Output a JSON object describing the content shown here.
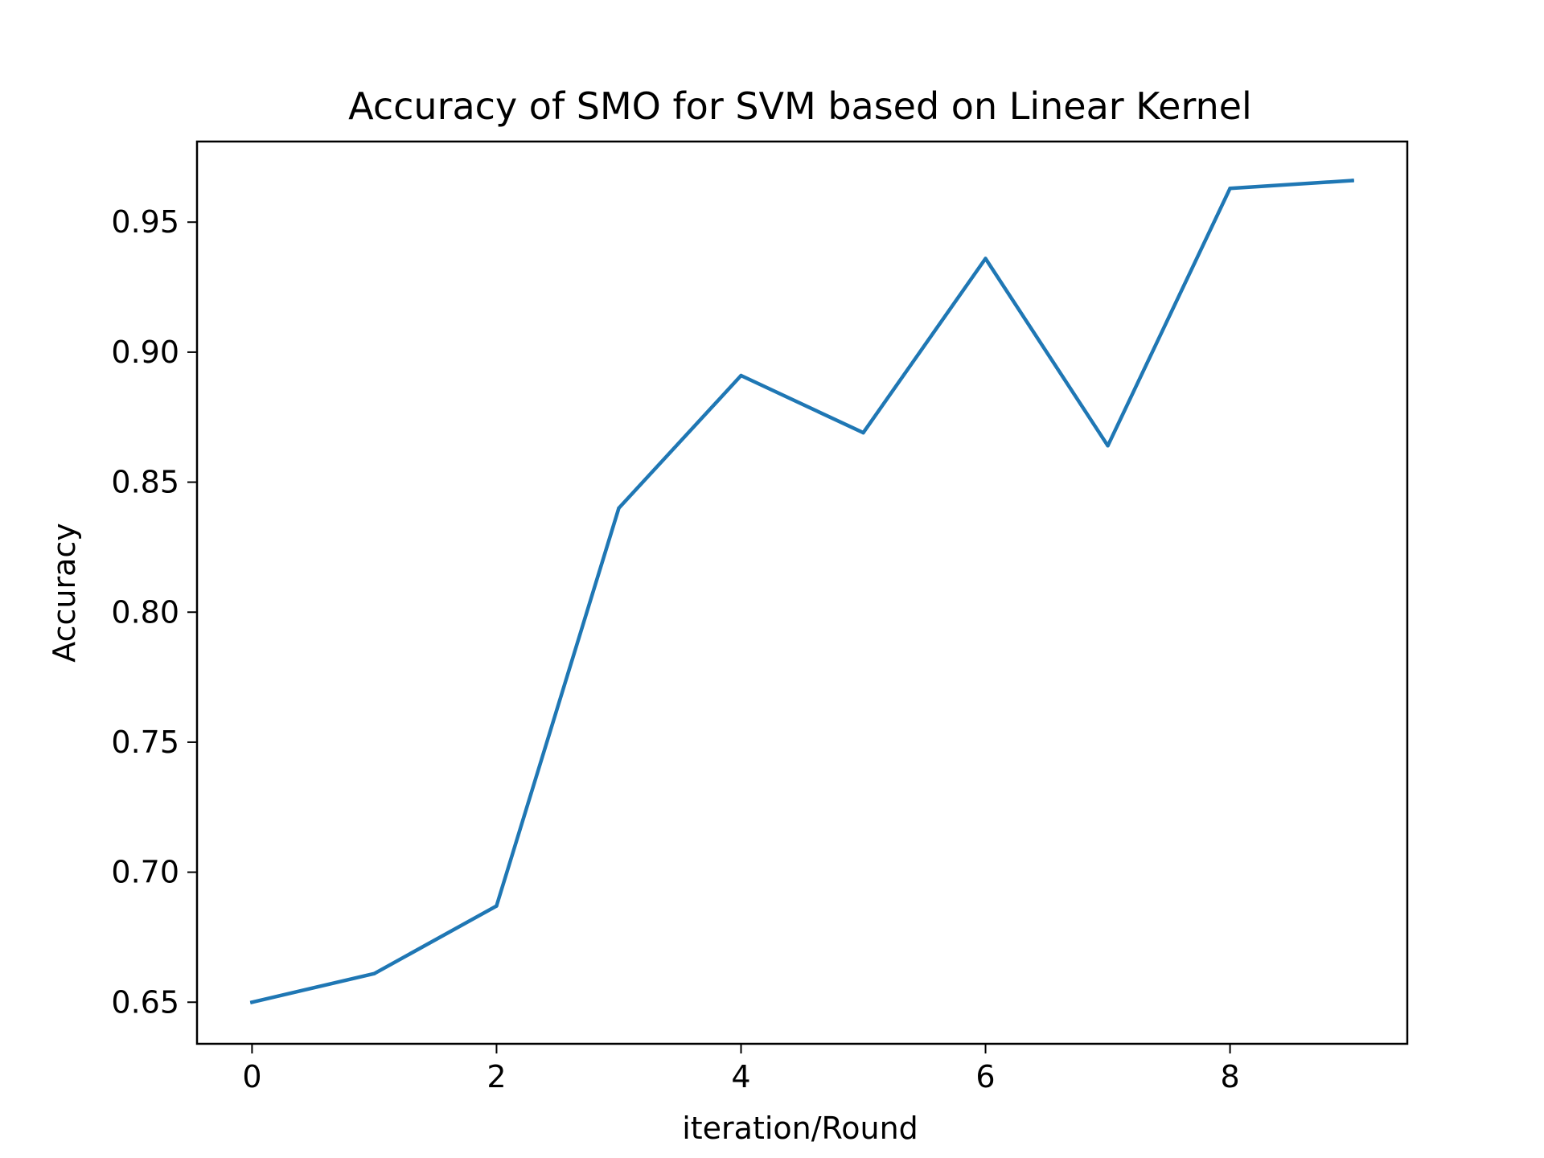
{
  "chart_data": {
    "type": "line",
    "title": "Accuracy of SMO for SVM based on Linear Kernel",
    "xlabel": "iteration/Round",
    "ylabel": "Accuracy",
    "xlim": [
      -0.45,
      9.45
    ],
    "ylim": [
      0.634,
      0.981
    ],
    "xticks": [
      0,
      2,
      4,
      6,
      8
    ],
    "xtick_labels": [
      "0",
      "2",
      "4",
      "6",
      "8"
    ],
    "yticks": [
      0.65,
      0.7,
      0.75,
      0.8,
      0.85,
      0.9,
      0.95
    ],
    "ytick_labels": [
      "0.65",
      "0.70",
      "0.75",
      "0.80",
      "0.85",
      "0.90",
      "0.95"
    ],
    "grid": false,
    "series": [
      {
        "color": "#1f77b4",
        "x": [
          0,
          1,
          2,
          3,
          4,
          5,
          6,
          7,
          8,
          9
        ],
        "y": [
          0.65,
          0.661,
          0.687,
          0.84,
          0.891,
          0.869,
          0.936,
          0.864,
          0.963,
          0.966
        ]
      }
    ]
  }
}
